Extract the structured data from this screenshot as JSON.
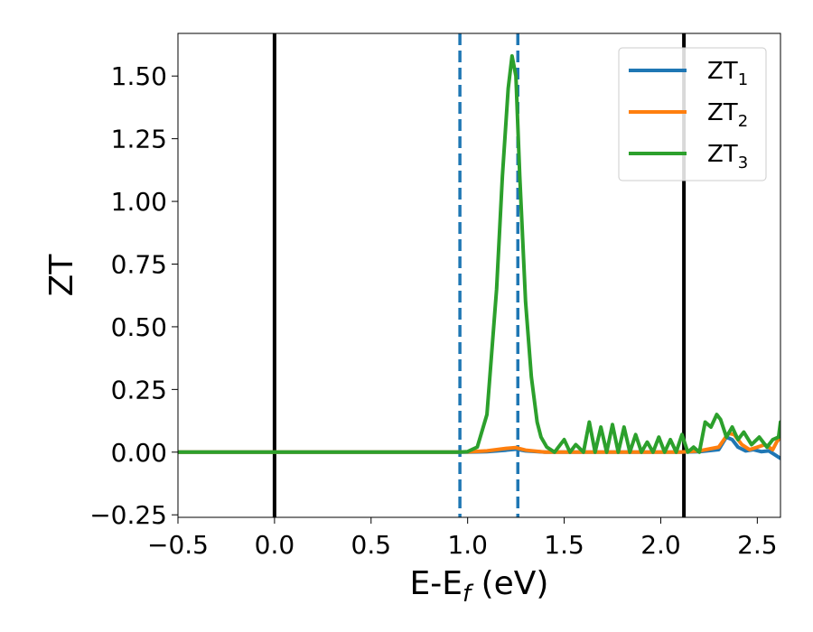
{
  "chart_data": {
    "type": "line",
    "xlabel": "E-E",
    "xlabel_sub": "f",
    "xlabel_unit": " (eV)",
    "ylabel": "ZT",
    "xlim": [
      -0.5,
      2.62
    ],
    "ylim": [
      -0.26,
      1.67
    ],
    "xticks": [
      -0.5,
      0.0,
      0.5,
      1.0,
      1.5,
      2.0,
      2.5
    ],
    "xtick_labels": [
      "−0.5",
      "0.0",
      "0.5",
      "1.0",
      "1.5",
      "2.0",
      "2.5"
    ],
    "yticks": [
      -0.25,
      0.0,
      0.25,
      0.5,
      0.75,
      1.0,
      1.25,
      1.5
    ],
    "ytick_labels": [
      "−0.25",
      "0.00",
      "0.25",
      "0.50",
      "0.75",
      "1.00",
      "1.25",
      "1.50"
    ],
    "legend_position": "top-right",
    "vlines": [
      {
        "x": 0.0,
        "style": "solid",
        "color": "#000000"
      },
      {
        "x": 2.12,
        "style": "solid",
        "color": "#000000"
      },
      {
        "x": 0.96,
        "style": "dashed",
        "color": "#1f77b4"
      },
      {
        "x": 1.26,
        "style": "dashed",
        "color": "#1f77b4"
      }
    ],
    "series": [
      {
        "name": "ZT",
        "name_sub": "1",
        "color": "#1f77b4",
        "x": [
          -0.5,
          0.9,
          1.0,
          1.1,
          1.2,
          1.25,
          1.3,
          1.4,
          2.1,
          2.2,
          2.3,
          2.34,
          2.37,
          2.4,
          2.44,
          2.48,
          2.52,
          2.56,
          2.59,
          2.62
        ],
        "y": [
          0.0,
          0.0,
          0.0,
          0.002,
          0.008,
          0.012,
          0.005,
          0.0,
          0.0,
          0.002,
          0.01,
          0.06,
          0.05,
          0.02,
          0.005,
          0.01,
          0.002,
          0.005,
          -0.01,
          -0.025
        ]
      },
      {
        "name": "ZT",
        "name_sub": "2",
        "color": "#ff7f0e",
        "x": [
          -0.5,
          0.9,
          1.0,
          1.1,
          1.2,
          1.25,
          1.3,
          1.4,
          2.1,
          2.2,
          2.3,
          2.35,
          2.38,
          2.42,
          2.46,
          2.5,
          2.54,
          2.58,
          2.6,
          2.62
        ],
        "y": [
          0.0,
          0.0,
          0.001,
          0.005,
          0.015,
          0.018,
          0.008,
          0.0,
          0.0,
          0.005,
          0.02,
          0.075,
          0.07,
          0.03,
          0.01,
          0.02,
          0.03,
          0.01,
          0.04,
          0.06
        ]
      },
      {
        "name": "ZT",
        "name_sub": "3",
        "color": "#2ca02c",
        "x": [
          -0.5,
          0.95,
          1.0,
          1.05,
          1.1,
          1.15,
          1.18,
          1.21,
          1.23,
          1.25,
          1.27,
          1.3,
          1.33,
          1.36,
          1.38,
          1.41,
          1.45,
          1.5,
          1.53,
          1.56,
          1.6,
          1.63,
          1.66,
          1.69,
          1.72,
          1.75,
          1.78,
          1.81,
          1.84,
          1.87,
          1.9,
          1.93,
          1.96,
          1.99,
          2.02,
          2.05,
          2.08,
          2.11,
          2.14,
          2.17,
          2.2,
          2.23,
          2.26,
          2.29,
          2.31,
          2.34,
          2.37,
          2.4,
          2.43,
          2.47,
          2.51,
          2.55,
          2.58,
          2.61,
          2.62
        ],
        "y": [
          0.0,
          0.0,
          0.002,
          0.02,
          0.15,
          0.65,
          1.1,
          1.45,
          1.58,
          1.5,
          1.1,
          0.6,
          0.3,
          0.12,
          0.06,
          0.02,
          0.0,
          0.05,
          0.0,
          0.03,
          0.0,
          0.12,
          0.0,
          0.1,
          0.0,
          0.11,
          0.0,
          0.1,
          0.0,
          0.07,
          0.0,
          0.04,
          0.0,
          0.06,
          0.0,
          0.05,
          0.0,
          0.07,
          0.0,
          0.02,
          0.0,
          0.12,
          0.1,
          0.15,
          0.13,
          0.06,
          0.1,
          0.05,
          0.08,
          0.03,
          0.06,
          0.02,
          0.05,
          0.06,
          0.12
        ]
      }
    ]
  }
}
